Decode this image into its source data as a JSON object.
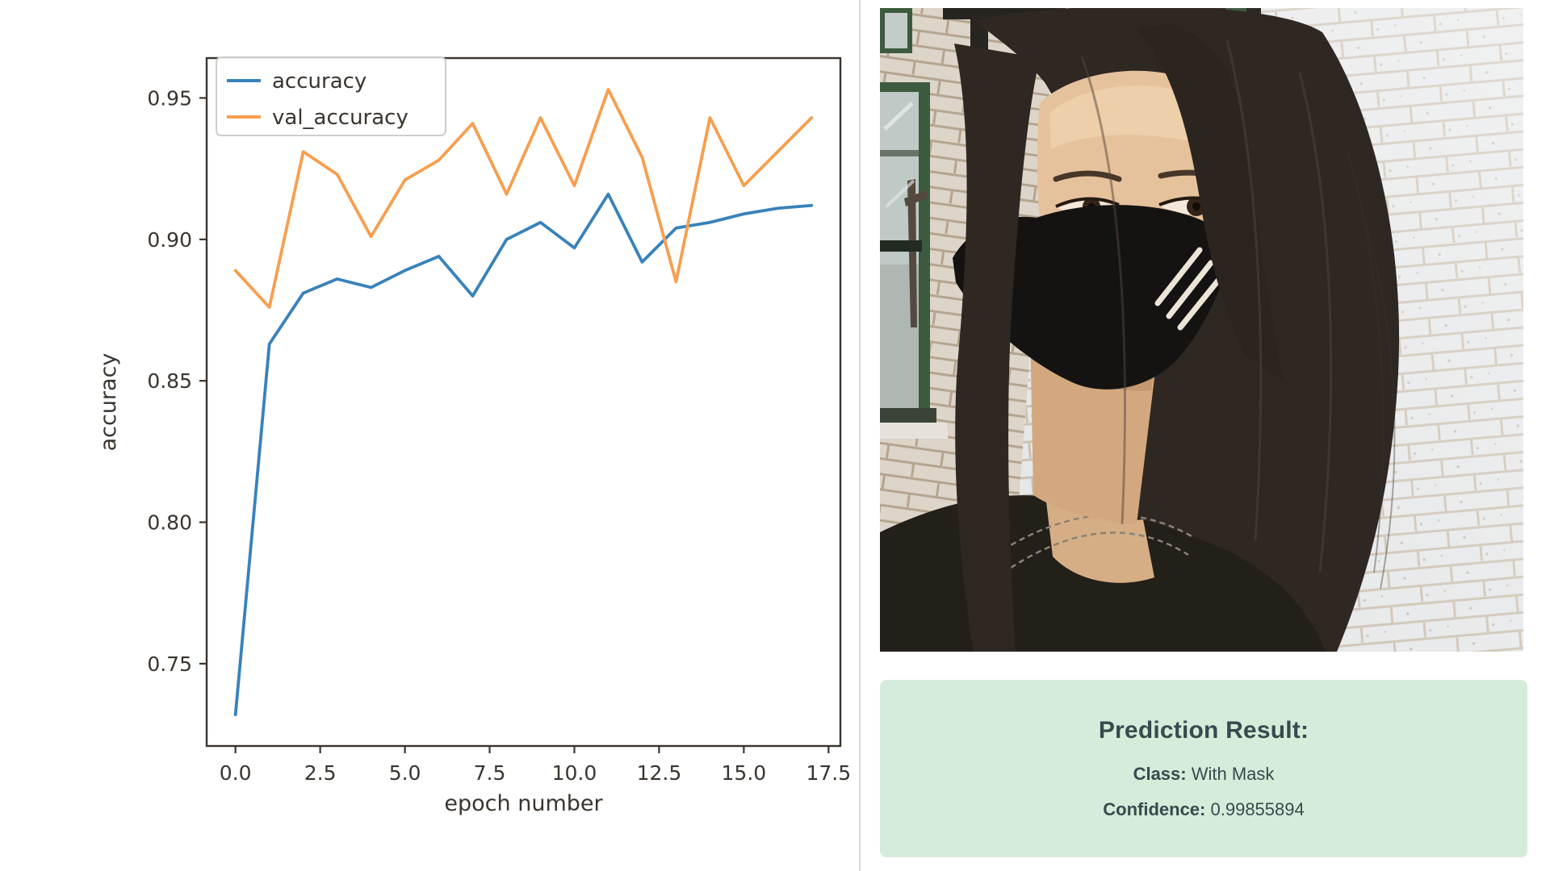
{
  "theme": {
    "divider": "#d9d9d9",
    "panel_bg": "#d6ecda",
    "panel_text": "#374a4e",
    "chart_text": "#3a342e",
    "accent_blue": "#3982bb",
    "accent_orange": "#f79e4e"
  },
  "chart_data": {
    "type": "line",
    "title": "",
    "xlabel": "epoch number",
    "ylabel": "accuracy",
    "x": [
      0,
      1,
      2,
      3,
      4,
      5,
      6,
      7,
      8,
      9,
      10,
      11,
      12,
      13,
      14,
      15,
      16,
      17
    ],
    "series": [
      {
        "name": "accuracy",
        "color": "#3982bb",
        "values": [
          0.732,
          0.863,
          0.881,
          0.886,
          0.883,
          0.889,
          0.894,
          0.88,
          0.9,
          0.906,
          0.897,
          0.916,
          0.892,
          0.904,
          0.906,
          0.909,
          0.911,
          0.912
        ]
      },
      {
        "name": "val_accuracy",
        "color": "#f79e4e",
        "values": [
          0.889,
          0.876,
          0.931,
          0.923,
          0.901,
          0.921,
          0.928,
          0.941,
          0.916,
          0.943,
          0.919,
          0.953,
          0.929,
          0.885,
          0.943,
          0.919,
          0.931,
          0.943
        ]
      }
    ],
    "xlim": [
      -0.85,
      17.85
    ],
    "ylim": [
      0.7209,
      0.9641
    ],
    "xticks": [
      0,
      2.5,
      5,
      7.5,
      10,
      12.5,
      15,
      17.5
    ],
    "xtick_labels": [
      "0.0",
      "2.5",
      "5.0",
      "7.5",
      "10.0",
      "12.5",
      "15.0",
      "17.5"
    ],
    "yticks": [
      0.75,
      0.8,
      0.85,
      0.9,
      0.95
    ],
    "ytick_labels": [
      "0.75",
      "0.80",
      "0.85",
      "0.90",
      "0.95"
    ],
    "legend_position": "upper left",
    "grid": false
  },
  "photo": {
    "subject": "person with long dark hair wearing a black face mask with three light stripes, in front of a white brick wall with a green-framed window",
    "colors": {
      "wall_brick": "#e4e5e6",
      "wall_mortar": "#c9bcab",
      "left_wall_mortar": "#b5a58f",
      "window_frame": "#3c5a3e",
      "window_glass": "#bfc9c5",
      "hair": "#2e2722",
      "skin": "#e6c29c",
      "mask": "#141312",
      "mask_stripes": "#ece4d6",
      "shirt": "#232019"
    }
  },
  "result_panel": {
    "title": "Prediction Result:",
    "class_label": "Class:",
    "class_value": "With Mask",
    "confidence_label": "Confidence:",
    "confidence_value": "0.99855894"
  }
}
